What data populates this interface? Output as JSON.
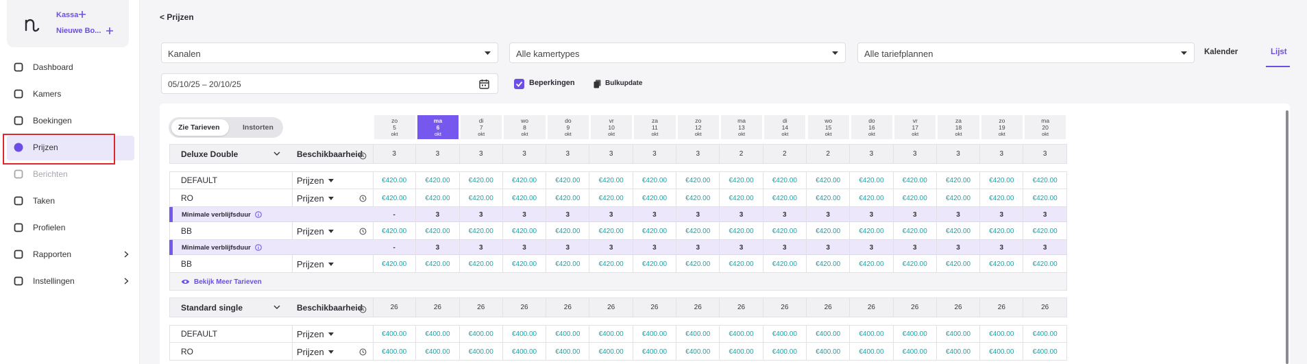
{
  "sidebar": {
    "logo_links": [
      "Kassa",
      "Nieuwe Bo..."
    ],
    "nav": [
      {
        "label": "Dashboard"
      },
      {
        "label": "Kamers"
      },
      {
        "label": "Boekingen"
      },
      {
        "label": "Prijzen",
        "active": true
      },
      {
        "label": "Berichten",
        "disabled": true
      },
      {
        "label": "Taken"
      },
      {
        "label": "Profielen"
      },
      {
        "label": "Rapporten",
        "submenu": true
      },
      {
        "label": "Instellingen",
        "submenu": true
      }
    ]
  },
  "header": {
    "back": "< Prijzen"
  },
  "filters": {
    "channels": "Kanalen",
    "room_types": "Alle kamertypes",
    "rate_plans": "Alle tariefplannen",
    "views": [
      "Kalender",
      "Lijst"
    ],
    "active_view": 1,
    "date_range": "05/10/25 – 20/10/25",
    "restrictions": "Beperkingen",
    "bulk": "Bulkupdate"
  },
  "toggle": [
    "Zie Tarieven",
    "Instorten"
  ],
  "dates": [
    {
      "day": "zo",
      "date": 5,
      "month": "okt"
    },
    {
      "day": "ma",
      "date": 6,
      "month": "okt",
      "selected": true
    },
    {
      "day": "di",
      "date": 7,
      "month": "okt"
    },
    {
      "day": "wo",
      "date": 8,
      "month": "okt"
    },
    {
      "day": "do",
      "date": 9,
      "month": "okt"
    },
    {
      "day": "vr",
      "date": 10,
      "month": "okt"
    },
    {
      "day": "za",
      "date": 11,
      "month": "okt"
    },
    {
      "day": "zo",
      "date": 12,
      "month": "okt"
    },
    {
      "day": "ma",
      "date": 13,
      "month": "okt"
    },
    {
      "day": "di",
      "date": 14,
      "month": "okt"
    },
    {
      "day": "wo",
      "date": 15,
      "month": "okt"
    },
    {
      "day": "do",
      "date": 16,
      "month": "okt"
    },
    {
      "day": "vr",
      "date": 17,
      "month": "okt"
    },
    {
      "day": "za",
      "date": 18,
      "month": "okt"
    },
    {
      "day": "zo",
      "date": 19,
      "month": "okt"
    },
    {
      "day": "ma",
      "date": 20,
      "month": "okt"
    }
  ],
  "rooms": [
    {
      "name": "Deluxe Double",
      "availability_label": "Beschikbaarheid",
      "availability": [
        3,
        3,
        3,
        3,
        3,
        3,
        3,
        3,
        2,
        2,
        2,
        3,
        3,
        3,
        3,
        3
      ],
      "rates": [
        {
          "name": "DEFAULT",
          "selector": "Prijzen",
          "values": [
            "€420.00",
            "€420.00",
            "€420.00",
            "€420.00",
            "€420.00",
            "€420.00",
            "€420.00",
            "€420.00",
            "€420.00",
            "€420.00",
            "€420.00",
            "€420.00",
            "€420.00",
            "€420.00",
            "€420.00",
            "€420.00"
          ]
        },
        {
          "name": "RO",
          "selector": "Prijzen",
          "history_icon": true,
          "values": [
            "€420.00",
            "€420.00",
            "€420.00",
            "€420.00",
            "€420.00",
            "€420.00",
            "€420.00",
            "€420.00",
            "€420.00",
            "€420.00",
            "€420.00",
            "€420.00",
            "€420.00",
            "€420.00",
            "€420.00",
            "€420.00"
          ]
        },
        {
          "restriction": "Minimale verblijfsduur",
          "values": [
            "-",
            3,
            3,
            3,
            3,
            3,
            3,
            3,
            3,
            3,
            3,
            3,
            3,
            3,
            3,
            3
          ]
        },
        {
          "name": "BB",
          "selector": "Prijzen",
          "history_icon": true,
          "values": [
            "€420.00",
            "€420.00",
            "€420.00",
            "€420.00",
            "€420.00",
            "€420.00",
            "€420.00",
            "€420.00",
            "€420.00",
            "€420.00",
            "€420.00",
            "€420.00",
            "€420.00",
            "€420.00",
            "€420.00",
            "€420.00"
          ]
        },
        {
          "restriction": "Minimale verblijfsduur",
          "values": [
            "-",
            3,
            3,
            3,
            3,
            3,
            3,
            3,
            3,
            3,
            3,
            3,
            3,
            3,
            3,
            3
          ]
        },
        {
          "name": "BB",
          "selector": "Prijzen",
          "values": [
            "€420.00",
            "€420.00",
            "€420.00",
            "€420.00",
            "€420.00",
            "€420.00",
            "€420.00",
            "€420.00",
            "€420.00",
            "€420.00",
            "€420.00",
            "€420.00",
            "€420.00",
            "€420.00",
            "€420.00",
            "€420.00"
          ]
        }
      ],
      "more": "Bekijk Meer Tarieven"
    },
    {
      "name": "Standard single",
      "availability_label": "Beschikbaarheid",
      "availability": [
        26,
        26,
        26,
        26,
        26,
        26,
        26,
        26,
        26,
        26,
        26,
        26,
        26,
        26,
        26,
        26
      ],
      "rates": [
        {
          "name": "DEFAULT",
          "selector": "Prijzen",
          "values": [
            "€400.00",
            "€400.00",
            "€400.00",
            "€400.00",
            "€400.00",
            "€400.00",
            "€400.00",
            "€400.00",
            "€400.00",
            "€400.00",
            "€400.00",
            "€400.00",
            "€400.00",
            "€400.00",
            "€400.00",
            "€400.00"
          ]
        },
        {
          "name": "RO",
          "selector": "Prijzen",
          "history_icon": true,
          "values": [
            "€400.00",
            "€400.00",
            "€400.00",
            "€400.00",
            "€400.00",
            "€400.00",
            "€400.00",
            "€400.00",
            "€400.00",
            "€400.00",
            "€400.00",
            "€400.00",
            "€400.00",
            "€400.00",
            "€400.00",
            "€400.00"
          ]
        }
      ]
    }
  ]
}
